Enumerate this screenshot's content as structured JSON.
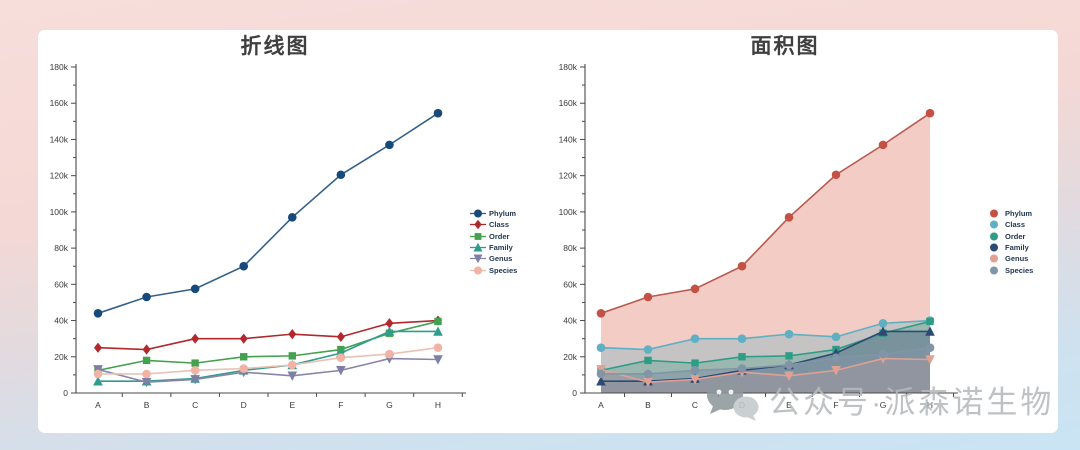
{
  "watermark": {
    "text": "公众号·派森诺生物",
    "icon": "wechat-icon"
  },
  "background": {
    "top_color": "#f5d9d6",
    "bottom_color": "#cae4f3",
    "card_color": "#ffffff"
  },
  "chart_data": [
    {
      "type": "line",
      "title": "折线图",
      "categories": [
        "A",
        "B",
        "C",
        "D",
        "E",
        "F",
        "G",
        "H"
      ],
      "ylim": [
        0,
        180000
      ],
      "ytick_step": 20000,
      "ytick_labels": [
        "0",
        "20k",
        "40k",
        "60k",
        "80k",
        "100k",
        "120k",
        "140k",
        "160k",
        "180k"
      ],
      "legend_position": "right",
      "grid": false,
      "series": [
        {
          "name": "Phylum",
          "marker": "circle",
          "color": "#17497a",
          "line": "#35608a",
          "values": [
            44000,
            53000,
            57500,
            70000,
            97000,
            120500,
            137000,
            154500
          ]
        },
        {
          "name": "Class",
          "marker": "diamond",
          "color": "#b2282c",
          "line": "#b2282c",
          "values": [
            25000,
            24000,
            30000,
            30000,
            32500,
            31000,
            38500,
            40000
          ]
        },
        {
          "name": "Order",
          "marker": "square",
          "color": "#44a14f",
          "line": "#44a14f",
          "values": [
            12500,
            18000,
            16500,
            20000,
            20500,
            24000,
            33000,
            39500
          ]
        },
        {
          "name": "Family",
          "marker": "triangle-up",
          "color": "#2f9c8e",
          "line": "#2f9c8e",
          "values": [
            6500,
            6500,
            8000,
            12500,
            15500,
            22000,
            34000,
            34000
          ]
        },
        {
          "name": "Genus",
          "marker": "triangle-down",
          "color": "#7d7fa5",
          "line": "#8a84ab",
          "values": [
            13000,
            6000,
            7500,
            11500,
            9500,
            12500,
            19000,
            18500
          ]
        },
        {
          "name": "Species",
          "marker": "circle",
          "color": "#f0b3a5",
          "line": "#e9c2b4",
          "values": [
            10500,
            10500,
            12500,
            13500,
            15500,
            19500,
            21500,
            25000
          ]
        }
      ]
    },
    {
      "type": "area",
      "title": "面积图",
      "categories": [
        "A",
        "B",
        "C",
        "D",
        "E",
        "F",
        "G",
        "H"
      ],
      "ylim": [
        0,
        180000
      ],
      "ytick_step": 20000,
      "ytick_labels": [
        "0",
        "20k",
        "40k",
        "60k",
        "80k",
        "100k",
        "120k",
        "140k",
        "160k",
        "180k"
      ],
      "legend_position": "right",
      "grid": false,
      "series": [
        {
          "name": "Phylum",
          "marker": "circle",
          "color": "#c35244",
          "line": "#b85a4e",
          "fill": "rgba(224,122,102,0.38)",
          "values": [
            44000,
            53000,
            57500,
            70000,
            97000,
            120500,
            137000,
            154500
          ]
        },
        {
          "name": "Class",
          "marker": "circle",
          "color": "#5eb0c2",
          "line": "#5eb0c2",
          "fill": "rgba(101,178,193,0.32)",
          "values": [
            25000,
            24000,
            30000,
            30000,
            32500,
            31000,
            38500,
            40000
          ]
        },
        {
          "name": "Order",
          "marker": "square",
          "color": "#2f9c85",
          "line": "#2f9c85",
          "fill": "rgba(58,157,134,0.30)",
          "values": [
            12500,
            18000,
            16500,
            20000,
            20500,
            24000,
            33000,
            39500
          ]
        },
        {
          "name": "Family",
          "marker": "triangle-up",
          "color": "#2b4a74",
          "line": "#2b4a74",
          "fill": "rgba(46,72,113,0.32)",
          "values": [
            6500,
            6500,
            8000,
            12500,
            15500,
            22000,
            34000,
            34000
          ]
        },
        {
          "name": "Genus",
          "marker": "triangle-down",
          "color": "#e0a093",
          "line": "#e0a093",
          "fill": "rgba(230,160,145,0.40)",
          "values": [
            13000,
            6000,
            7500,
            11500,
            9500,
            12500,
            19000,
            18500
          ]
        },
        {
          "name": "Species",
          "marker": "circle",
          "color": "#8195a7",
          "line": "#8195a7",
          "fill": "rgba(130,148,165,0.55)",
          "values": [
            10500,
            10500,
            12500,
            13500,
            15500,
            19500,
            21500,
            25000
          ]
        }
      ]
    }
  ]
}
